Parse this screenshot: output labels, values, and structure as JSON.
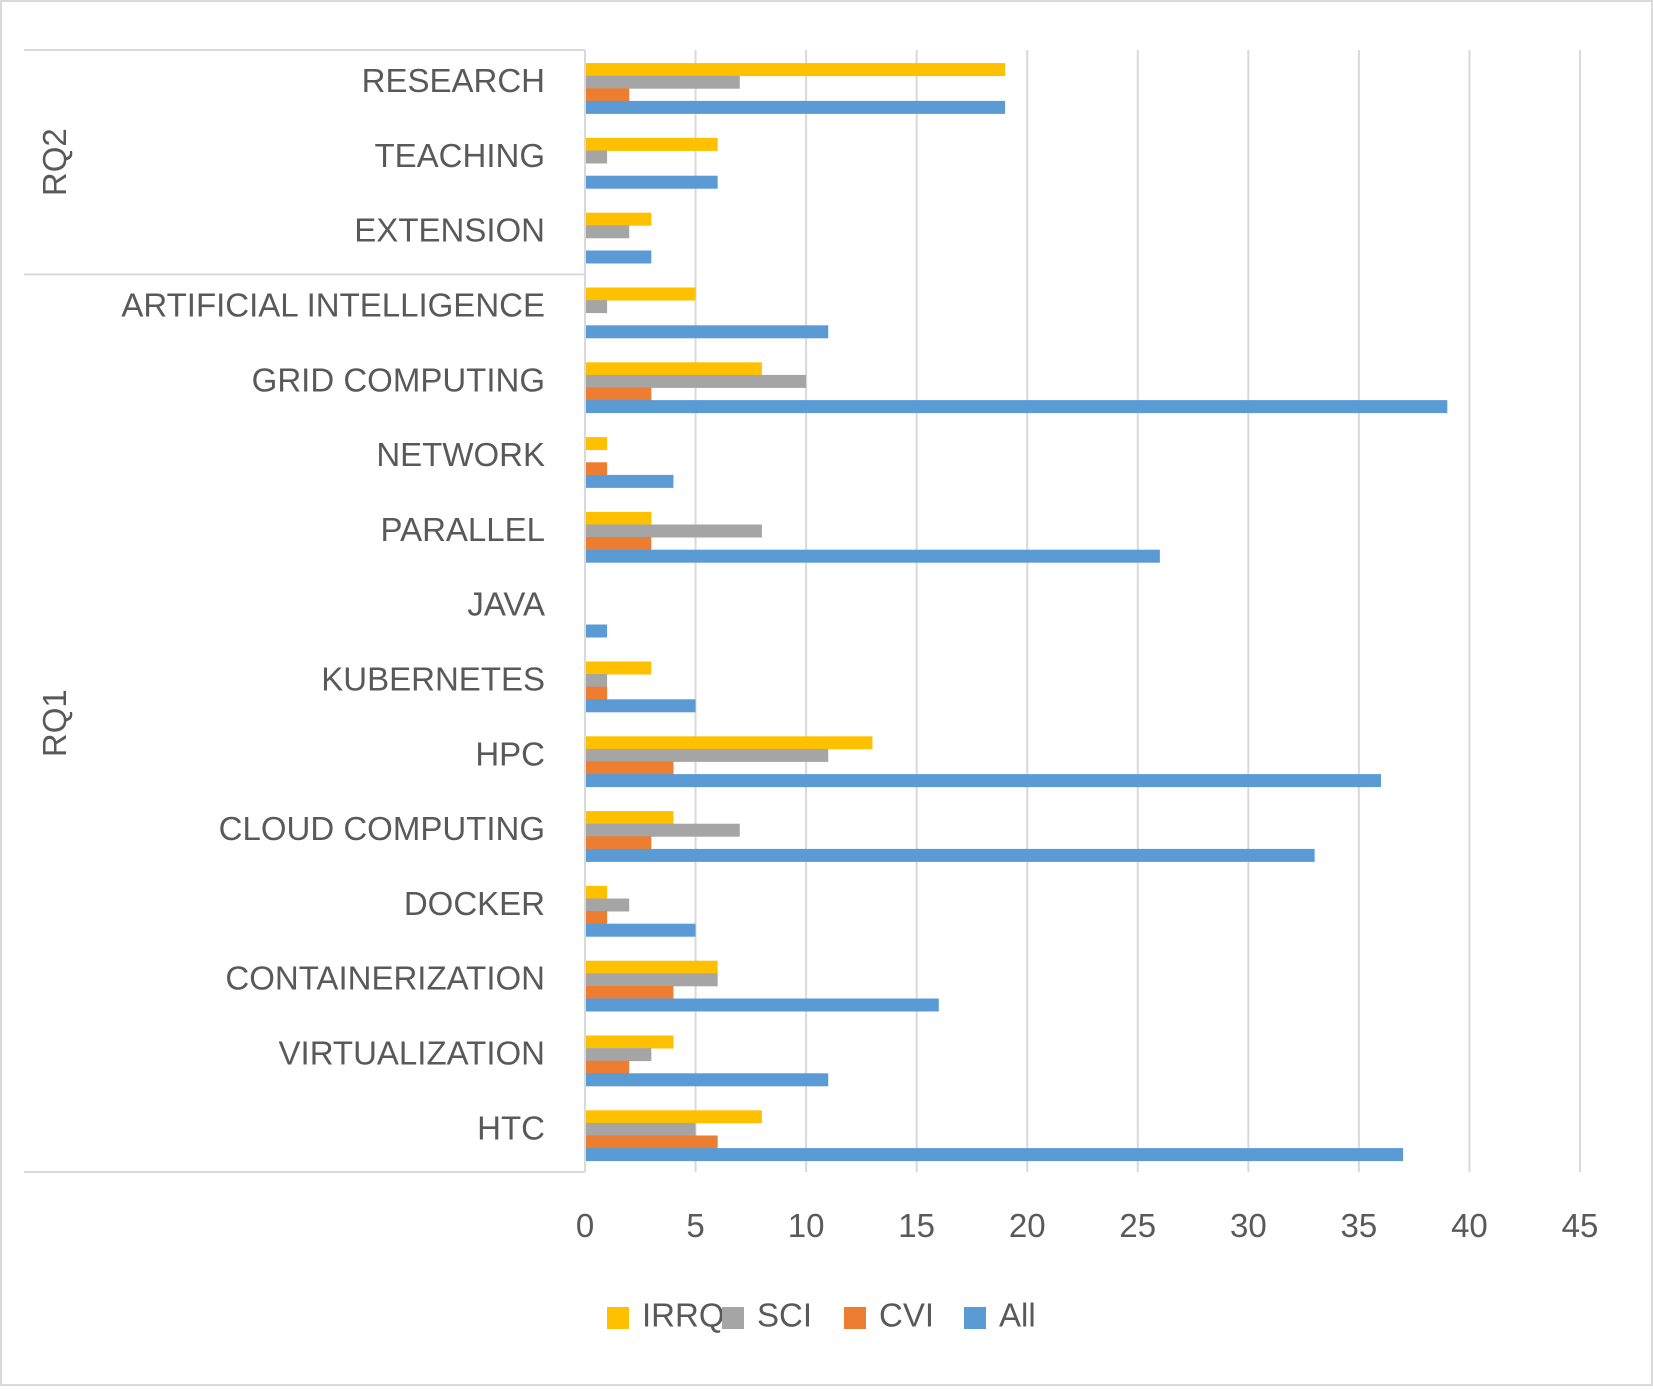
{
  "chart_data": {
    "type": "bar",
    "orientation": "horizontal",
    "title": "",
    "xlabel": "",
    "ylabel": "",
    "xlim": [
      0,
      45
    ],
    "x_ticks": [
      0,
      5,
      10,
      15,
      20,
      25,
      30,
      35,
      40,
      45
    ],
    "grid": "vertical",
    "legend_position": "bottom",
    "groups": [
      {
        "label": "RQ2",
        "categories": [
          "RESEARCH",
          "TEACHING",
          "EXTENSION"
        ]
      },
      {
        "label": "RQ1",
        "categories": [
          "ARTIFICIAL INTELLIGENCE",
          "GRID COMPUTING",
          "NETWORK",
          "PARALLEL",
          "JAVA",
          "KUBERNETES",
          "HPC",
          "CLOUD COMPUTING",
          "DOCKER",
          "CONTAINERIZATION",
          "VIRTUALIZATION",
          "HTC"
        ]
      }
    ],
    "categories": [
      "RESEARCH",
      "TEACHING",
      "EXTENSION",
      "ARTIFICIAL INTELLIGENCE",
      "GRID COMPUTING",
      "NETWORK",
      "PARALLEL",
      "JAVA",
      "KUBERNETES",
      "HPC",
      "CLOUD COMPUTING",
      "DOCKER",
      "CONTAINERIZATION",
      "VIRTUALIZATION",
      "HTC"
    ],
    "series": [
      {
        "name": "IRRQ",
        "color": "#FFC000",
        "values": [
          19,
          6,
          3,
          5,
          8,
          1,
          3,
          0,
          3,
          13,
          4,
          1,
          6,
          4,
          8
        ]
      },
      {
        "name": "SCI",
        "color": "#A5A5A5",
        "values": [
          7,
          1,
          2,
          1,
          10,
          0,
          8,
          0,
          1,
          11,
          7,
          2,
          6,
          3,
          5
        ]
      },
      {
        "name": "CVI",
        "color": "#ED7D31",
        "values": [
          2,
          0,
          0,
          0,
          3,
          1,
          3,
          0,
          1,
          4,
          3,
          1,
          4,
          2,
          6
        ]
      },
      {
        "name": "All",
        "color": "#5B9BD5",
        "values": [
          19,
          6,
          3,
          11,
          39,
          4,
          26,
          1,
          5,
          36,
          33,
          5,
          16,
          11,
          37
        ]
      }
    ]
  }
}
